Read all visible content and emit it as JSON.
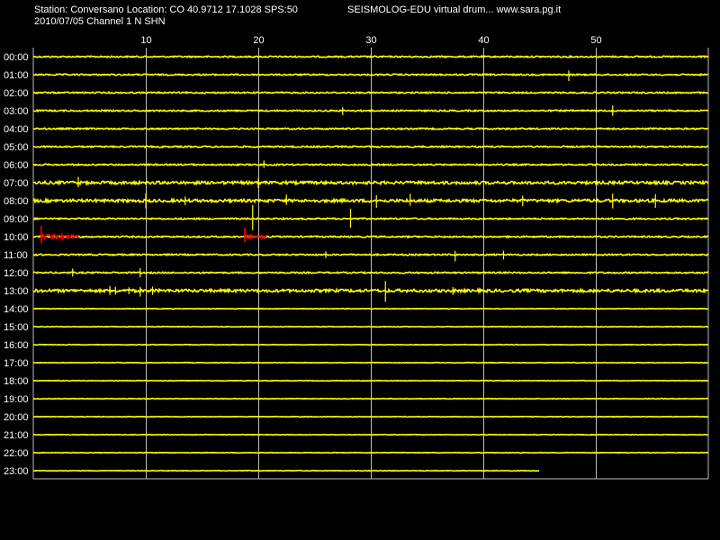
{
  "header": {
    "station": "Station: Conversano Location: CO 40.9712 17.1028 SPS:50",
    "date_channel": "2010/07/05  Channel 1 N SHN",
    "source": "SEISMOLOG-EDU virtual drum... www.sara.pg.it"
  },
  "colors": {
    "background": "#000000",
    "trace": "#ffff00",
    "event": "#ff0000",
    "text": "#ffffff",
    "grid": "#c0c0c0"
  },
  "chart_data": {
    "type": "line",
    "title": "",
    "xlabel": "",
    "ylabel": "",
    "x_unit": "minutes",
    "xlim": [
      0,
      60
    ],
    "x_ticks": [
      10,
      20,
      30,
      40,
      50
    ],
    "grid": true,
    "rows": [
      {
        "label": "00:00",
        "end_minute": 60,
        "activity": 1,
        "spikes": []
      },
      {
        "label": "01:00",
        "end_minute": 60,
        "activity": 1,
        "spikes": [
          {
            "minute": 47.6,
            "amp": 0.4
          }
        ]
      },
      {
        "label": "02:00",
        "end_minute": 60,
        "activity": 1,
        "spikes": []
      },
      {
        "label": "03:00",
        "end_minute": 60,
        "activity": 1,
        "spikes": [
          {
            "minute": 27.5,
            "amp": 0.3
          },
          {
            "minute": 51.5,
            "amp": 0.3
          }
        ]
      },
      {
        "label": "04:00",
        "end_minute": 60,
        "activity": 1,
        "spikes": []
      },
      {
        "label": "05:00",
        "end_minute": 60,
        "activity": 1,
        "spikes": []
      },
      {
        "label": "06:00",
        "end_minute": 60,
        "activity": 1,
        "spikes": [
          {
            "minute": 20.5,
            "amp": 0.25
          }
        ]
      },
      {
        "label": "07:00",
        "end_minute": 60,
        "activity": 2,
        "spikes": [
          {
            "minute": 4,
            "amp": 0.4
          },
          {
            "minute": 20,
            "amp": 0.45
          }
        ]
      },
      {
        "label": "08:00",
        "end_minute": 60,
        "activity": 2,
        "spikes": [
          {
            "minute": 10,
            "amp": 0.5
          },
          {
            "minute": 13.5,
            "amp": 0.4
          },
          {
            "minute": 22.5,
            "amp": 0.45
          },
          {
            "minute": 30.5,
            "amp": 0.5
          },
          {
            "minute": 33.5,
            "amp": 0.4
          },
          {
            "minute": 43.5,
            "amp": 0.4
          },
          {
            "minute": 51.5,
            "amp": 0.45
          },
          {
            "minute": 55.3,
            "amp": 0.5
          }
        ]
      },
      {
        "label": "09:00",
        "end_minute": 60,
        "activity": 1,
        "spikes": [
          {
            "minute": 19.5,
            "amp": 0.8
          },
          {
            "minute": 28.2,
            "amp": 0.9
          }
        ]
      },
      {
        "label": "10:00",
        "end_minute": 60,
        "activity": 1,
        "spikes": [],
        "events": [
          {
            "start": 0.7,
            "end": 4,
            "amp": 0.6
          },
          {
            "start": 18.8,
            "end": 20.8,
            "amp": 0.5
          }
        ]
      },
      {
        "label": "11:00",
        "end_minute": 60,
        "activity": 1,
        "spikes": [
          {
            "minute": 26,
            "amp": 0.35
          },
          {
            "minute": 37.5,
            "amp": 0.4
          },
          {
            "minute": 41.8,
            "amp": 0.45
          }
        ]
      },
      {
        "label": "12:00",
        "end_minute": 60,
        "activity": 1,
        "spikes": [
          {
            "minute": 3.5,
            "amp": 0.3
          },
          {
            "minute": 9.5,
            "amp": 0.3
          }
        ]
      },
      {
        "label": "13:00",
        "end_minute": 60,
        "activity": 2,
        "spikes": [
          {
            "minute": 6.8,
            "amp": 0.4
          },
          {
            "minute": 7.3,
            "amp": 0.35
          },
          {
            "minute": 8.5,
            "amp": 0.3
          },
          {
            "minute": 9.5,
            "amp": 0.35
          },
          {
            "minute": 10.6,
            "amp": 0.3
          },
          {
            "minute": 31.3,
            "amp": 0.75
          },
          {
            "minute": 37.3,
            "amp": 0.3
          }
        ]
      },
      {
        "label": "14:00",
        "end_minute": 60,
        "activity": 0.4,
        "spikes": []
      },
      {
        "label": "15:00",
        "end_minute": 60,
        "activity": 0.4,
        "spikes": []
      },
      {
        "label": "16:00",
        "end_minute": 60,
        "activity": 0.4,
        "spikes": []
      },
      {
        "label": "17:00",
        "end_minute": 60,
        "activity": 0.4,
        "spikes": []
      },
      {
        "label": "18:00",
        "end_minute": 60,
        "activity": 0.4,
        "spikes": []
      },
      {
        "label": "19:00",
        "end_minute": 60,
        "activity": 0.4,
        "spikes": []
      },
      {
        "label": "20:00",
        "end_minute": 60,
        "activity": 0.4,
        "spikes": []
      },
      {
        "label": "21:00",
        "end_minute": 60,
        "activity": 0.4,
        "spikes": []
      },
      {
        "label": "22:00",
        "end_minute": 60,
        "activity": 0.4,
        "spikes": []
      },
      {
        "label": "23:00",
        "end_minute": 45,
        "activity": 0.4,
        "spikes": []
      }
    ]
  }
}
